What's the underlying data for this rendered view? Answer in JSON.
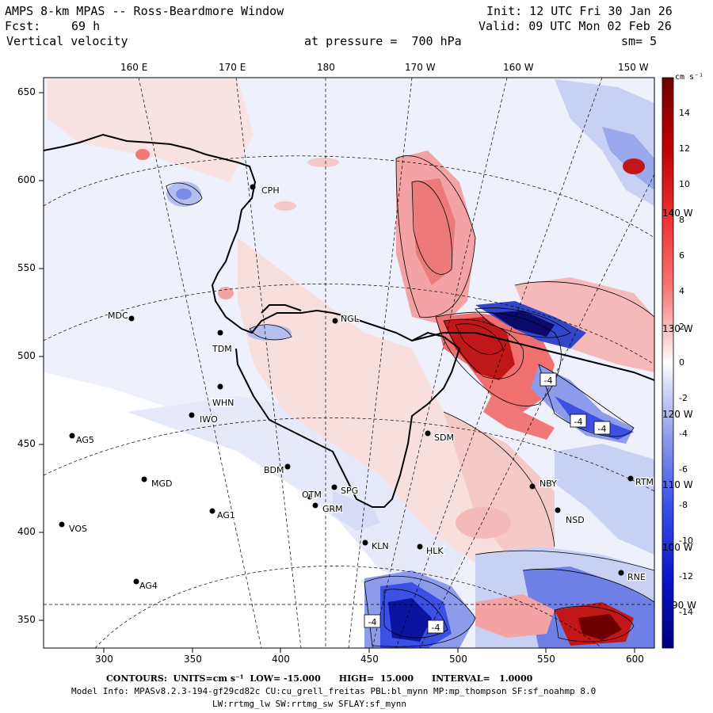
{
  "header": {
    "title": "AMPS 8-km MPAS -- Ross-Beardmore Window",
    "init": "Init: 12 UTC Fri 30 Jan 26",
    "fcst_label": "Fcst:",
    "fcst_value": "69 h",
    "valid": "Valid: 09 UTC Mon 02 Feb 26",
    "field": "Vertical velocity",
    "pressure": "at pressure =  700 hPa",
    "smoothing": "sm= 5"
  },
  "axes": {
    "top_lon_labels": [
      "160 E",
      "170 E",
      "180",
      "170 W",
      "160 W",
      "150 W"
    ],
    "left_y_labels": [
      "650",
      "600",
      "550",
      "500",
      "450",
      "400",
      "350"
    ],
    "bottom_x_labels": [
      "300",
      "350",
      "400",
      "450",
      "500",
      "550",
      "600"
    ],
    "right_lon_labels": [
      "140 W",
      "130 W",
      "120 W",
      "110 W",
      "100 W",
      "90 W"
    ]
  },
  "colorbar": {
    "unit": "cm s⁻¹",
    "labels": [
      "14",
      "12",
      "10",
      "8",
      "6",
      "4",
      "2",
      "0",
      "-2",
      "-4",
      "-6",
      "-8",
      "-10",
      "-12",
      "-14"
    ],
    "low_color": "#00007a",
    "high_color": "#6e0000",
    "neutral_color": "#ffffff"
  },
  "stations": [
    {
      "code": "CPH"
    },
    {
      "code": "NGL"
    },
    {
      "code": "MDC"
    },
    {
      "code": "TDM"
    },
    {
      "code": "WHN"
    },
    {
      "code": "IWO"
    },
    {
      "code": "AG5"
    },
    {
      "code": "SDM"
    },
    {
      "code": "BDM"
    },
    {
      "code": "MGD"
    },
    {
      "code": "OTM"
    },
    {
      "code": "SPG"
    },
    {
      "code": "GRM"
    },
    {
      "code": "NBY"
    },
    {
      "code": "AG1"
    },
    {
      "code": "VOS"
    },
    {
      "code": "NSD"
    },
    {
      "code": "KLN"
    },
    {
      "code": "HLK"
    },
    {
      "code": "AG4"
    },
    {
      "code": "RNE"
    },
    {
      "code": "RTM"
    }
  ],
  "contour_labels": [
    "-4",
    "-4",
    "-4",
    "-4",
    "-4"
  ],
  "footer": {
    "contours": "CONTOURS:  UNITS=cm s⁻¹  LOW= -15.000      HIGH=  15.000      INTERVAL=   1.0000",
    "model_info": "Model Info: MPASv8.2.3-194-gf29cd82c CU:cu_grell_freitas PBL:bl_mynn MP:mp_thompson SF:sf_noahmp 8.0",
    "model_info2": "LW:rrtmg_lw SW:rrtmg_sw SFLAY:sf_mynn"
  }
}
